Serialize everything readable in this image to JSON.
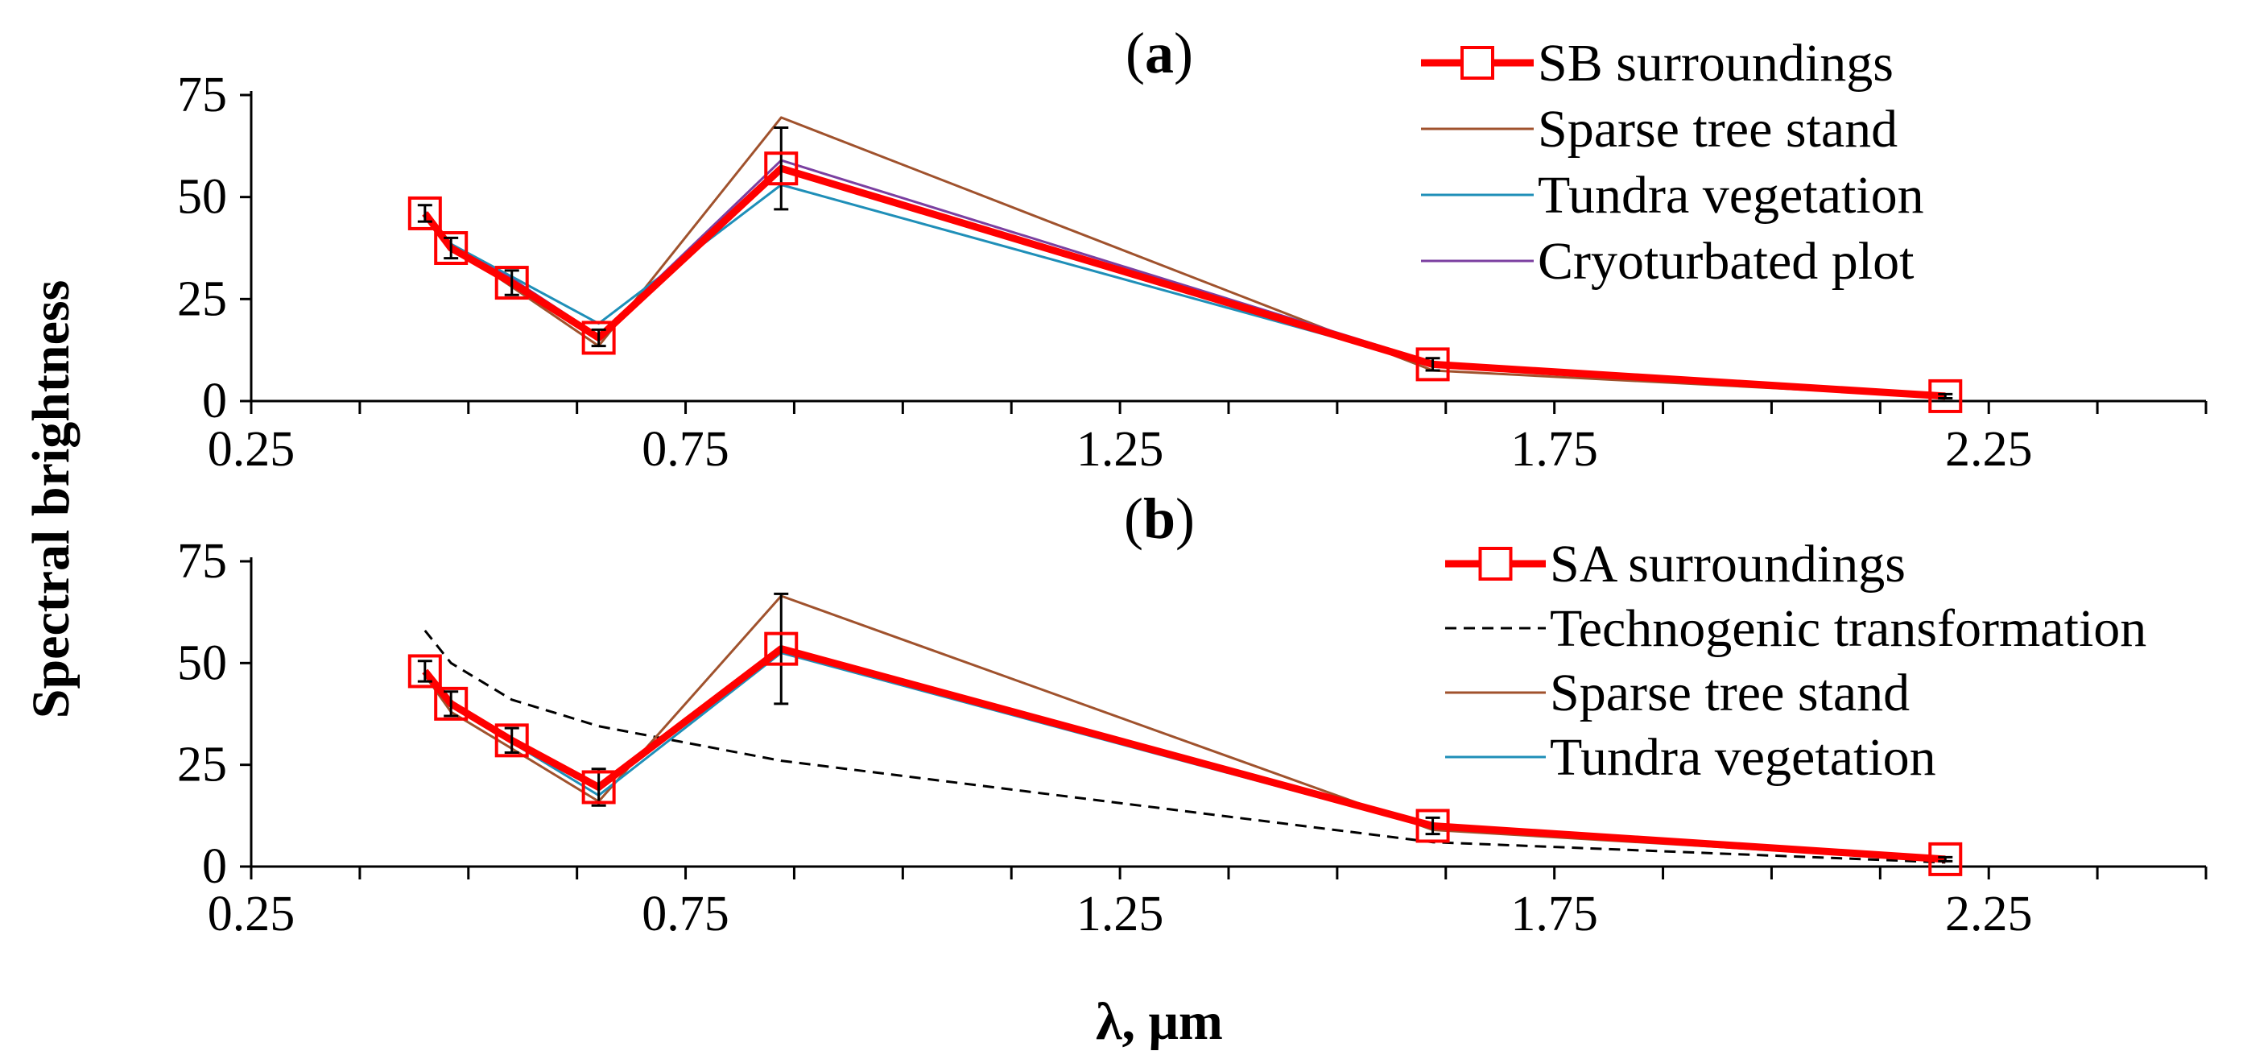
{
  "colors": {
    "surroundings": "#ff0000",
    "sparse": "#a0522d",
    "tundra": "#1f8fb8",
    "cryo": "#7b3fa0",
    "techno": "#000000",
    "axis": "#000000"
  },
  "ylabel": "Spectral brightness",
  "xlabel": "λ, μm",
  "chart_data": [
    {
      "type": "line",
      "panel_label": "(a)",
      "panel_letter": "a",
      "xlim": [
        0.25,
        2.5
      ],
      "ylim": [
        0,
        75
      ],
      "x_ticks": [
        "0.25",
        "0.75",
        "1.25",
        "1.75",
        "2.25"
      ],
      "y_ticks": [
        "0",
        "25",
        "50",
        "75"
      ],
      "x": [
        0.45,
        0.48,
        0.55,
        0.65,
        0.86,
        1.61,
        2.2
      ],
      "series": [
        {
          "name": "SB surroundings",
          "key": "surroundings",
          "values": [
            46,
            37.5,
            29,
            15.5,
            57,
            9,
            1.2
          ],
          "markers": true,
          "errors": [
            2,
            2.5,
            3,
            2,
            10,
            1.5,
            0.5
          ]
        },
        {
          "name": "Sparse tree stand",
          "key": "sparse",
          "values": [
            46,
            38,
            28,
            13.5,
            69.5,
            7.5,
            1
          ]
        },
        {
          "name": "Tundra vegetation",
          "key": "tundra",
          "values": [
            46.5,
            38.5,
            30.5,
            19,
            53,
            9,
            1.3
          ]
        },
        {
          "name": "Cryoturbated plot",
          "key": "cryo",
          "values": [
            46,
            38,
            30,
            16,
            59,
            9.5,
            1.5
          ]
        }
      ]
    },
    {
      "type": "line",
      "panel_label": "(b)",
      "panel_letter": "b",
      "xlim": [
        0.25,
        2.5
      ],
      "ylim": [
        0,
        75
      ],
      "x_ticks": [
        "0.25",
        "0.75",
        "1.25",
        "1.75",
        "2.25"
      ],
      "y_ticks": [
        "0",
        "25",
        "50",
        "75"
      ],
      "x": [
        0.45,
        0.48,
        0.55,
        0.65,
        0.86,
        1.61,
        2.2
      ],
      "series": [
        {
          "name": "SA surroundings",
          "key": "surroundings",
          "values": [
            48,
            40,
            31,
            19.5,
            53.5,
            10,
            1.8
          ],
          "markers": true,
          "errors": [
            2.5,
            3,
            3,
            4.5,
            13.5,
            2,
            0.5
          ]
        },
        {
          "name": "Technogenic transformation",
          "key": "techno",
          "values": [
            58,
            50,
            41,
            34.5,
            26,
            6,
            1
          ],
          "dashed": true
        },
        {
          "name": "Sparse tree stand",
          "key": "sparse",
          "values": [
            47,
            38,
            29,
            16,
            66.5,
            9,
            1.5
          ]
        },
        {
          "name": "Tundra vegetation",
          "key": "tundra",
          "values": [
            47.5,
            39.5,
            30.5,
            17.5,
            52.5,
            9.5,
            1.8
          ]
        }
      ]
    }
  ]
}
